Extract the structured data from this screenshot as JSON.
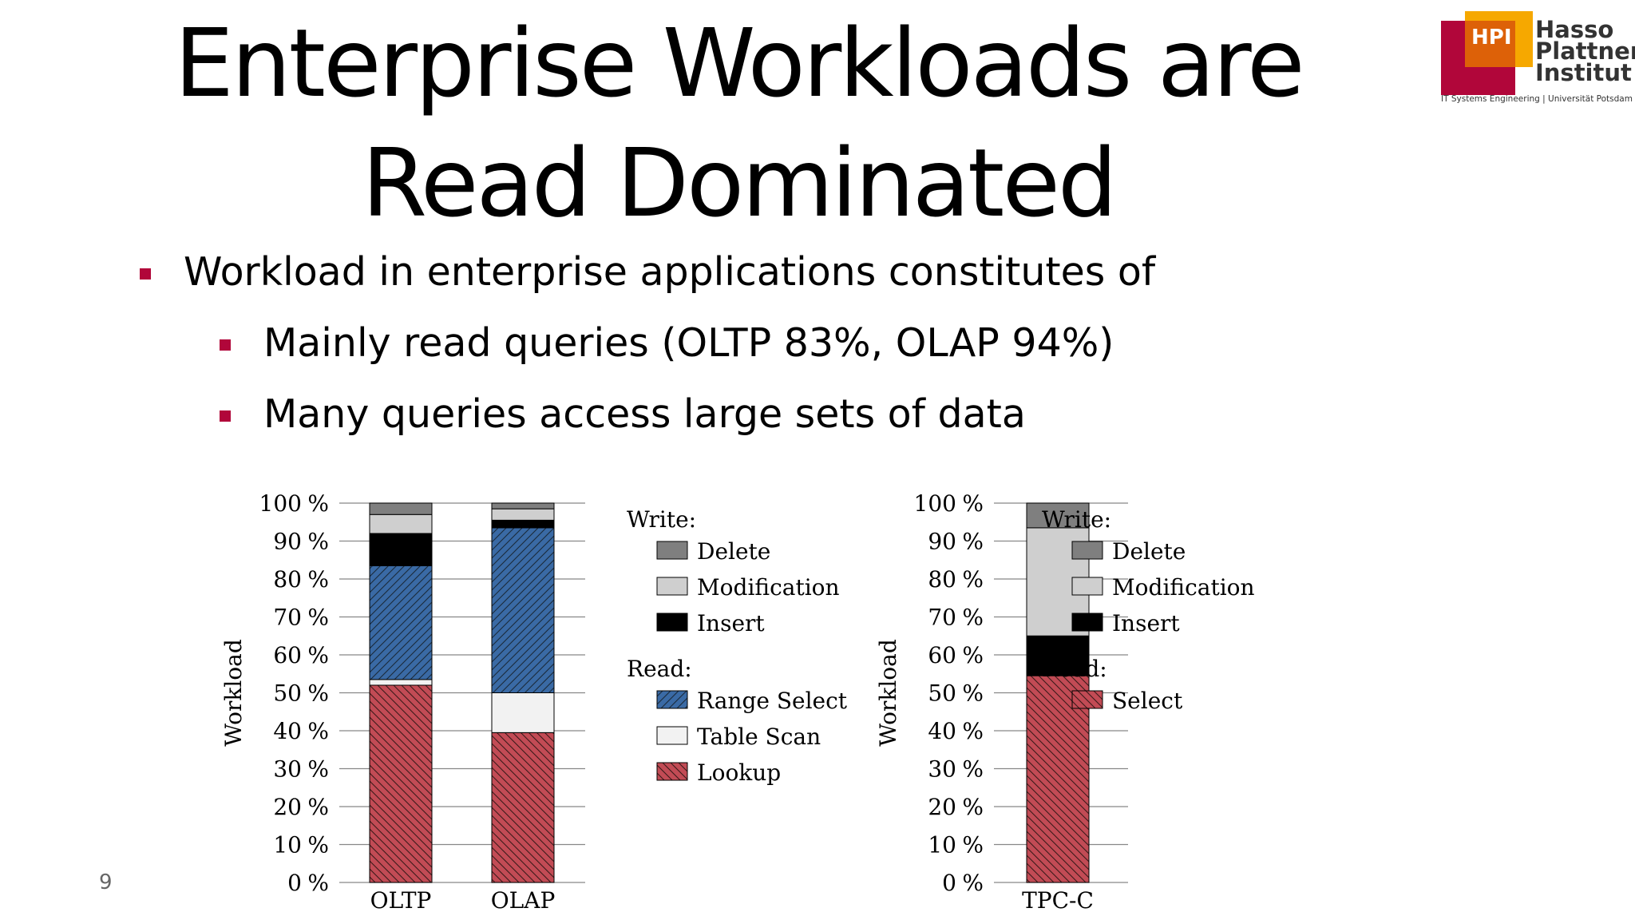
{
  "slide": {
    "title_line1": "Enterprise Workloads are",
    "title_line2": "Read Dominated",
    "bullets": [
      "Workload in enterprise applications constitutes of",
      "Mainly read queries (OLTP 83%, OLAP 94%)",
      "Many queries access large sets of data"
    ],
    "page_number": "9"
  },
  "logo": {
    "short": "HPI",
    "line1": "Hasso",
    "line2": "Plattner",
    "line3": "Institut",
    "subtitle": "IT Systems Engineering | Universität Potsdam"
  },
  "colors": {
    "accent": "#b1063a",
    "lookup": "#c24b55",
    "range_select": "#3a6aa5",
    "table_scan": "#f2f2f2",
    "insert": "#000000",
    "modification": "#cfcfcf",
    "delete": "#7f7f7f"
  },
  "chart_data": [
    {
      "type": "bar",
      "stacked": true,
      "ylabel": "Workload",
      "ylim": [
        0,
        100
      ],
      "yticks": [
        "0 %",
        "10 %",
        "20 %",
        "30 %",
        "40 %",
        "50 %",
        "60 %",
        "70 %",
        "80 %",
        "90 %",
        "100 %"
      ],
      "categories": [
        "OLTP",
        "OLAP"
      ],
      "legend": {
        "groups": [
          {
            "title": "Write:",
            "items": [
              "Delete",
              "Modification",
              "Insert"
            ]
          },
          {
            "title": "Read:",
            "items": [
              "Range Select",
              "Table Scan",
              "Lookup"
            ]
          }
        ]
      },
      "series": [
        {
          "name": "Lookup",
          "values": [
            52,
            39.5
          ]
        },
        {
          "name": "Table Scan",
          "values": [
            1.5,
            10.5
          ]
        },
        {
          "name": "Range Select",
          "values": [
            30,
            43.5
          ]
        },
        {
          "name": "Insert",
          "values": [
            8.5,
            2
          ]
        },
        {
          "name": "Modification",
          "values": [
            5,
            3
          ]
        },
        {
          "name": "Delete",
          "values": [
            3,
            1.5
          ]
        }
      ]
    },
    {
      "type": "bar",
      "stacked": true,
      "ylabel": "Workload",
      "ylim": [
        0,
        100
      ],
      "yticks": [
        "0 %",
        "10 %",
        "20 %",
        "30 %",
        "40 %",
        "50 %",
        "60 %",
        "70 %",
        "80 %",
        "90 %",
        "100 %"
      ],
      "categories": [
        "TPC-C"
      ],
      "legend": {
        "groups": [
          {
            "title": "Write:",
            "items": [
              "Delete",
              "Modification",
              "Insert"
            ]
          },
          {
            "title": "Read:",
            "items": [
              "Select"
            ]
          }
        ]
      },
      "series": [
        {
          "name": "Select",
          "values": [
            54.5
          ]
        },
        {
          "name": "Insert",
          "values": [
            10.5
          ]
        },
        {
          "name": "Modification",
          "values": [
            28.5
          ]
        },
        {
          "name": "Delete",
          "values": [
            6.5
          ]
        }
      ]
    }
  ]
}
